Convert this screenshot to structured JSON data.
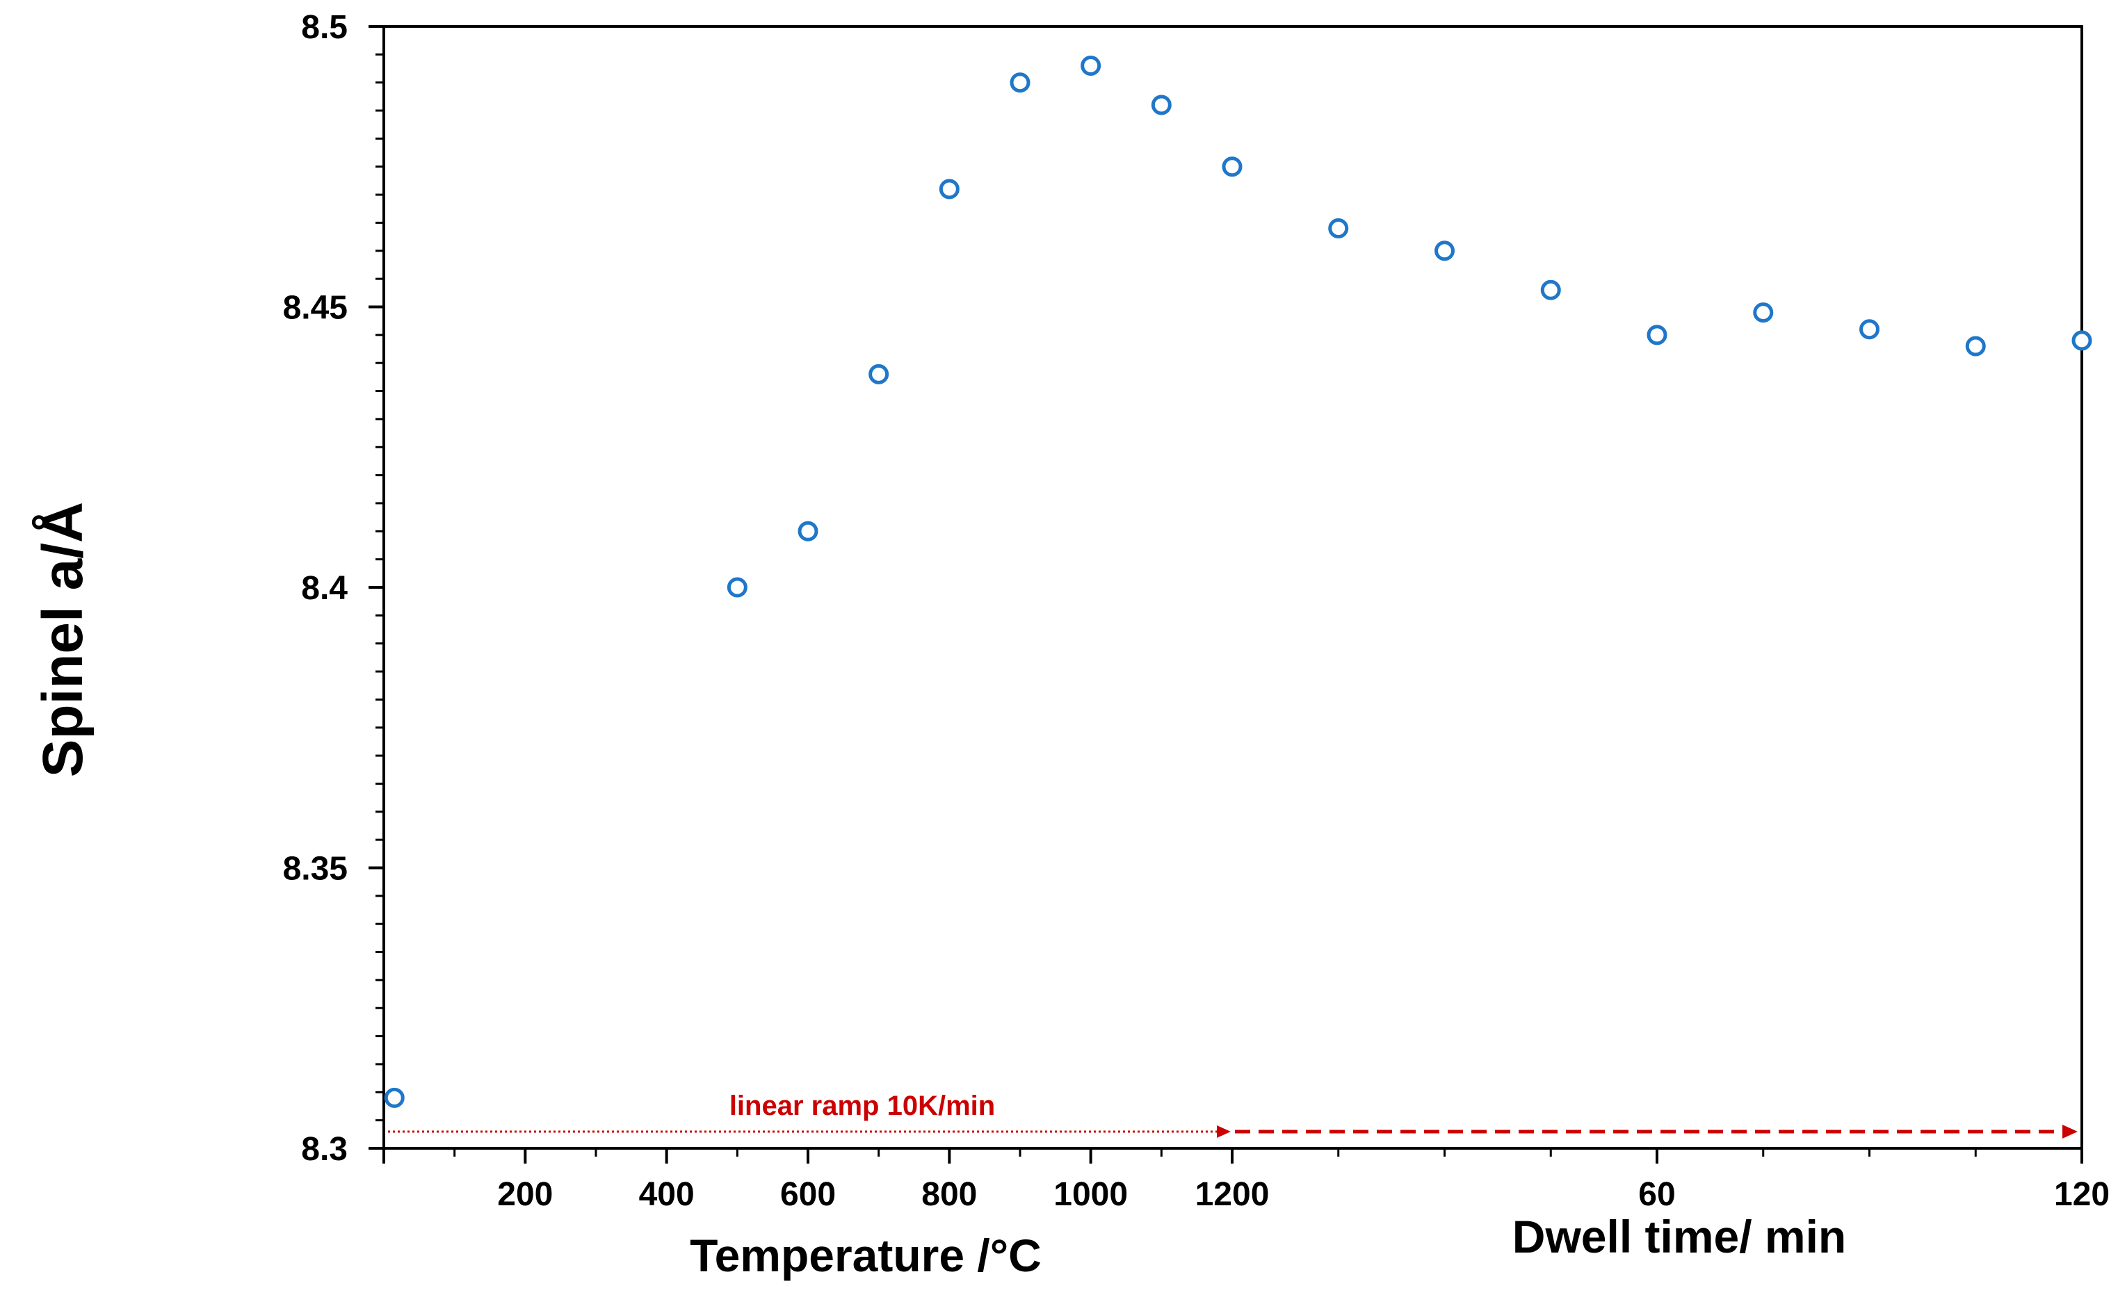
{
  "chart_data": {
    "type": "scatter",
    "ylabel": "Spinel a/Å",
    "xlabel_left": "Temperature /°C",
    "xlabel_right": "Dwell time/ min",
    "ylim": [
      8.3,
      8.5
    ],
    "y_ticks": [
      8.3,
      8.35,
      8.4,
      8.45,
      8.5
    ],
    "y_tick_labels": [
      "8.3",
      "8.35",
      "8.4",
      "8.45",
      "8.5"
    ],
    "temperature_axis": {
      "range": [
        0,
        1200
      ],
      "ticks": [
        200,
        400,
        600,
        800,
        1000,
        1200
      ],
      "tick_labels": [
        "200",
        "400",
        "600",
        "800",
        "1000",
        "1200"
      ]
    },
    "dwell_axis": {
      "range": [
        0,
        120
      ],
      "ticks": [
        60,
        120
      ],
      "tick_labels": [
        "60",
        "120"
      ]
    },
    "marker_color": "#1F77C9",
    "series": [
      {
        "name": "temperature_ramp",
        "x": [
          15,
          500,
          600,
          700,
          800,
          900,
          1000,
          1100,
          1200
        ],
        "y": [
          8.309,
          8.4,
          8.41,
          8.438,
          8.471,
          8.49,
          8.493,
          8.486,
          8.475
        ]
      },
      {
        "name": "dwell",
        "x": [
          15,
          30,
          45,
          60,
          75,
          90,
          105,
          120
        ],
        "y": [
          8.464,
          8.46,
          8.453,
          8.445,
          8.449,
          8.446,
          8.443,
          8.444
        ]
      }
    ],
    "annotation": {
      "text": "linear ramp 10K/min",
      "color": "#CC0000"
    }
  }
}
